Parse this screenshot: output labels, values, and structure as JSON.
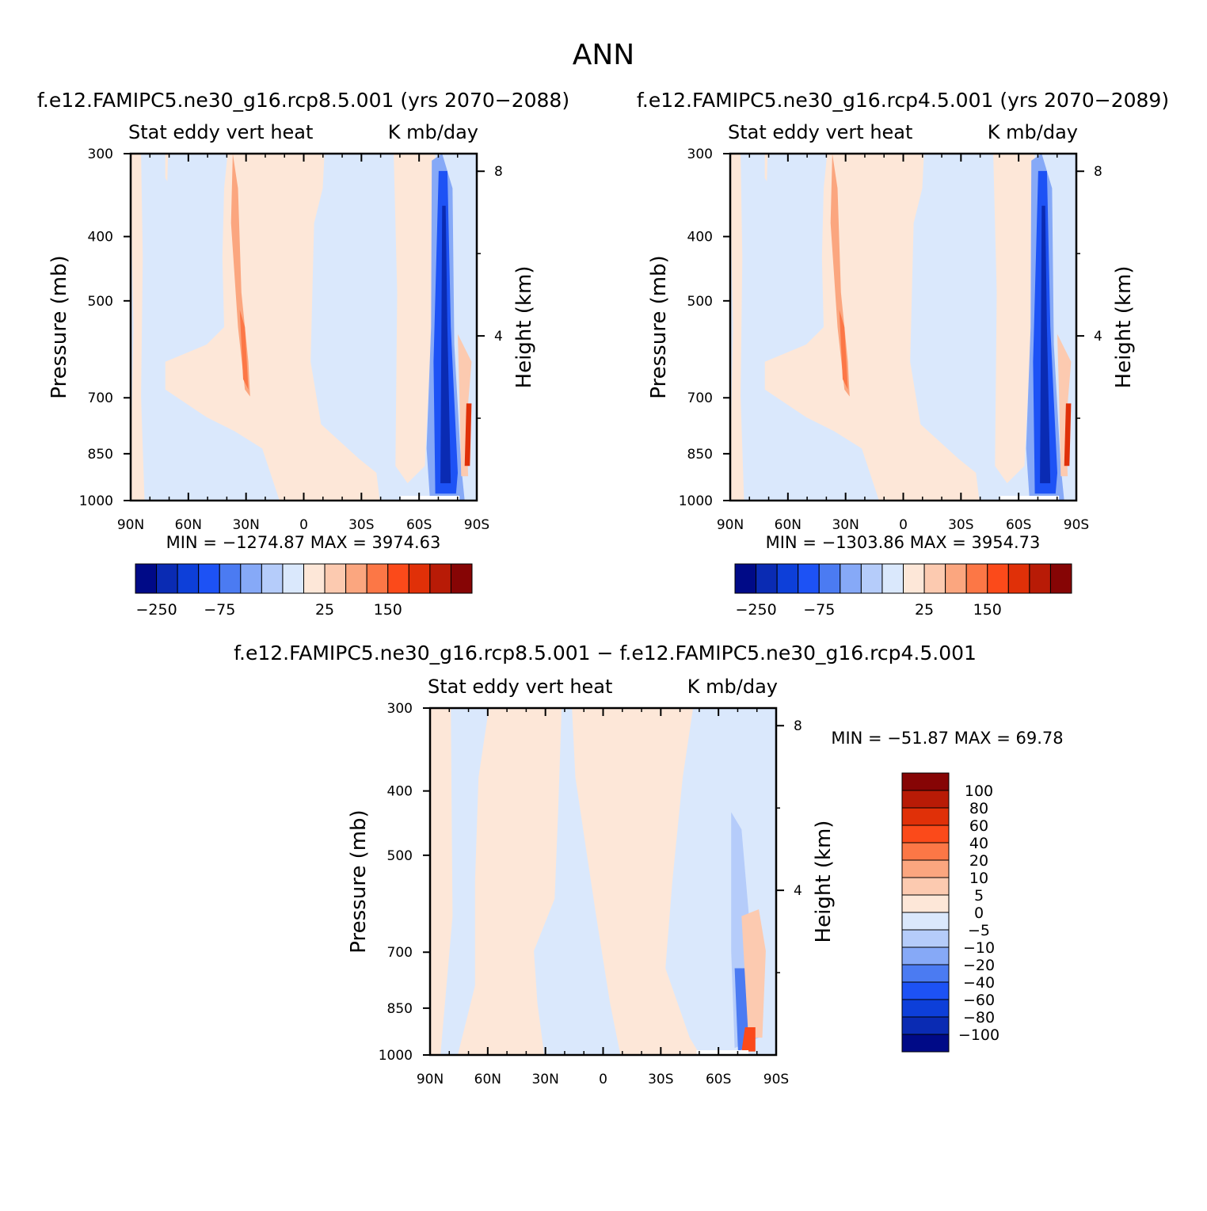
{
  "main_title": "ANN",
  "panels": [
    {
      "title": "f.e12.FAMIPC5.ne30_g16.rcp8.5.001 (yrs 2070-2088)",
      "var_label": "Stat eddy vert heat",
      "units": "K mb/day",
      "min_text": "MIN = -1274.87",
      "max_text": "MAX = 3974.63"
    },
    {
      "title": "f.e12.FAMIPC5.ne30_g16.rcp4.5.001 (yrs 2070-2089)",
      "var_label": "Stat eddy vert heat",
      "units": "K mb/day",
      "min_text": "MIN = -1303.86",
      "max_text": "MAX = 3954.73"
    },
    {
      "title": "f.e12.FAMIPC5.ne30_g16.rcp8.5.001 - f.e12.FAMIPC5.ne30_g16.rcp4.5.001",
      "var_label": "Stat eddy vert heat",
      "units": "K mb/day",
      "min_text": "MIN = -51.87",
      "max_text": "MAX = 69.78"
    }
  ],
  "chart_data": [
    {
      "type": "heatmap",
      "title": "f.e12.FAMIPC5.ne30_g16.rcp8.5.001 (yrs 2070-2088)",
      "ylabel": "Pressure (mb)",
      "y2label": "Height (km)",
      "x_ticks": [
        "90N",
        "60N",
        "30N",
        "0",
        "30S",
        "60S",
        "90S"
      ],
      "xlim": [
        90,
        -90
      ],
      "y_ticks": [
        300,
        400,
        500,
        700,
        850,
        1000
      ],
      "ylim": [
        1000,
        300
      ],
      "y_scale": "log",
      "y2_ticks": [
        4,
        8
      ],
      "colorbar_labels": [
        "-250",
        "-75",
        "25",
        "150"
      ],
      "colorbar_orientation": "horizontal",
      "min": -1274.87,
      "max": 3974.63
    },
    {
      "type": "heatmap",
      "title": "f.e12.FAMIPC5.ne30_g16.rcp4.5.001 (yrs 2070-2089)",
      "ylabel": "Pressure (mb)",
      "y2label": "Height (km)",
      "x_ticks": [
        "90N",
        "60N",
        "30N",
        "0",
        "30S",
        "60S",
        "90S"
      ],
      "xlim": [
        90,
        -90
      ],
      "y_ticks": [
        300,
        400,
        500,
        700,
        850,
        1000
      ],
      "ylim": [
        1000,
        300
      ],
      "y_scale": "log",
      "y2_ticks": [
        4,
        8
      ],
      "colorbar_labels": [
        "-250",
        "-75",
        "25",
        "150"
      ],
      "colorbar_orientation": "horizontal",
      "min": -1303.86,
      "max": 3954.73
    },
    {
      "type": "heatmap",
      "title": "f.e12.FAMIPC5.ne30_g16.rcp8.5.001 - f.e12.FAMIPC5.ne30_g16.rcp4.5.001",
      "ylabel": "Pressure (mb)",
      "y2label": "Height (km)",
      "x_ticks": [
        "90N",
        "60N",
        "30N",
        "0",
        "30S",
        "60S",
        "90S"
      ],
      "xlim": [
        90,
        -90
      ],
      "y_ticks": [
        300,
        400,
        500,
        700,
        850,
        1000
      ],
      "ylim": [
        1000,
        300
      ],
      "y_scale": "log",
      "y2_ticks": [
        4,
        8
      ],
      "colorbar_labels": [
        "100",
        "80",
        "60",
        "40",
        "20",
        "10",
        "5",
        "0",
        "-5",
        "-10",
        "-20",
        "-40",
        "-60",
        "-80",
        "-100"
      ],
      "colorbar_orientation": "vertical",
      "min": -51.87,
      "max": 69.78
    }
  ],
  "colors": {
    "scale": [
      "#000a87",
      "#0a2bb3",
      "#0d3fd9",
      "#1d52f5",
      "#4b7bf2",
      "#86a9f7",
      "#b5ccfa",
      "#dae8fc",
      "#fde7d8",
      "#fccab0",
      "#fba67f",
      "#fc7746",
      "#fb4a1a",
      "#e03008",
      "#b81b06",
      "#860505"
    ],
    "neg_light": "#dae8fc",
    "pos_light": "#fde7d8"
  }
}
